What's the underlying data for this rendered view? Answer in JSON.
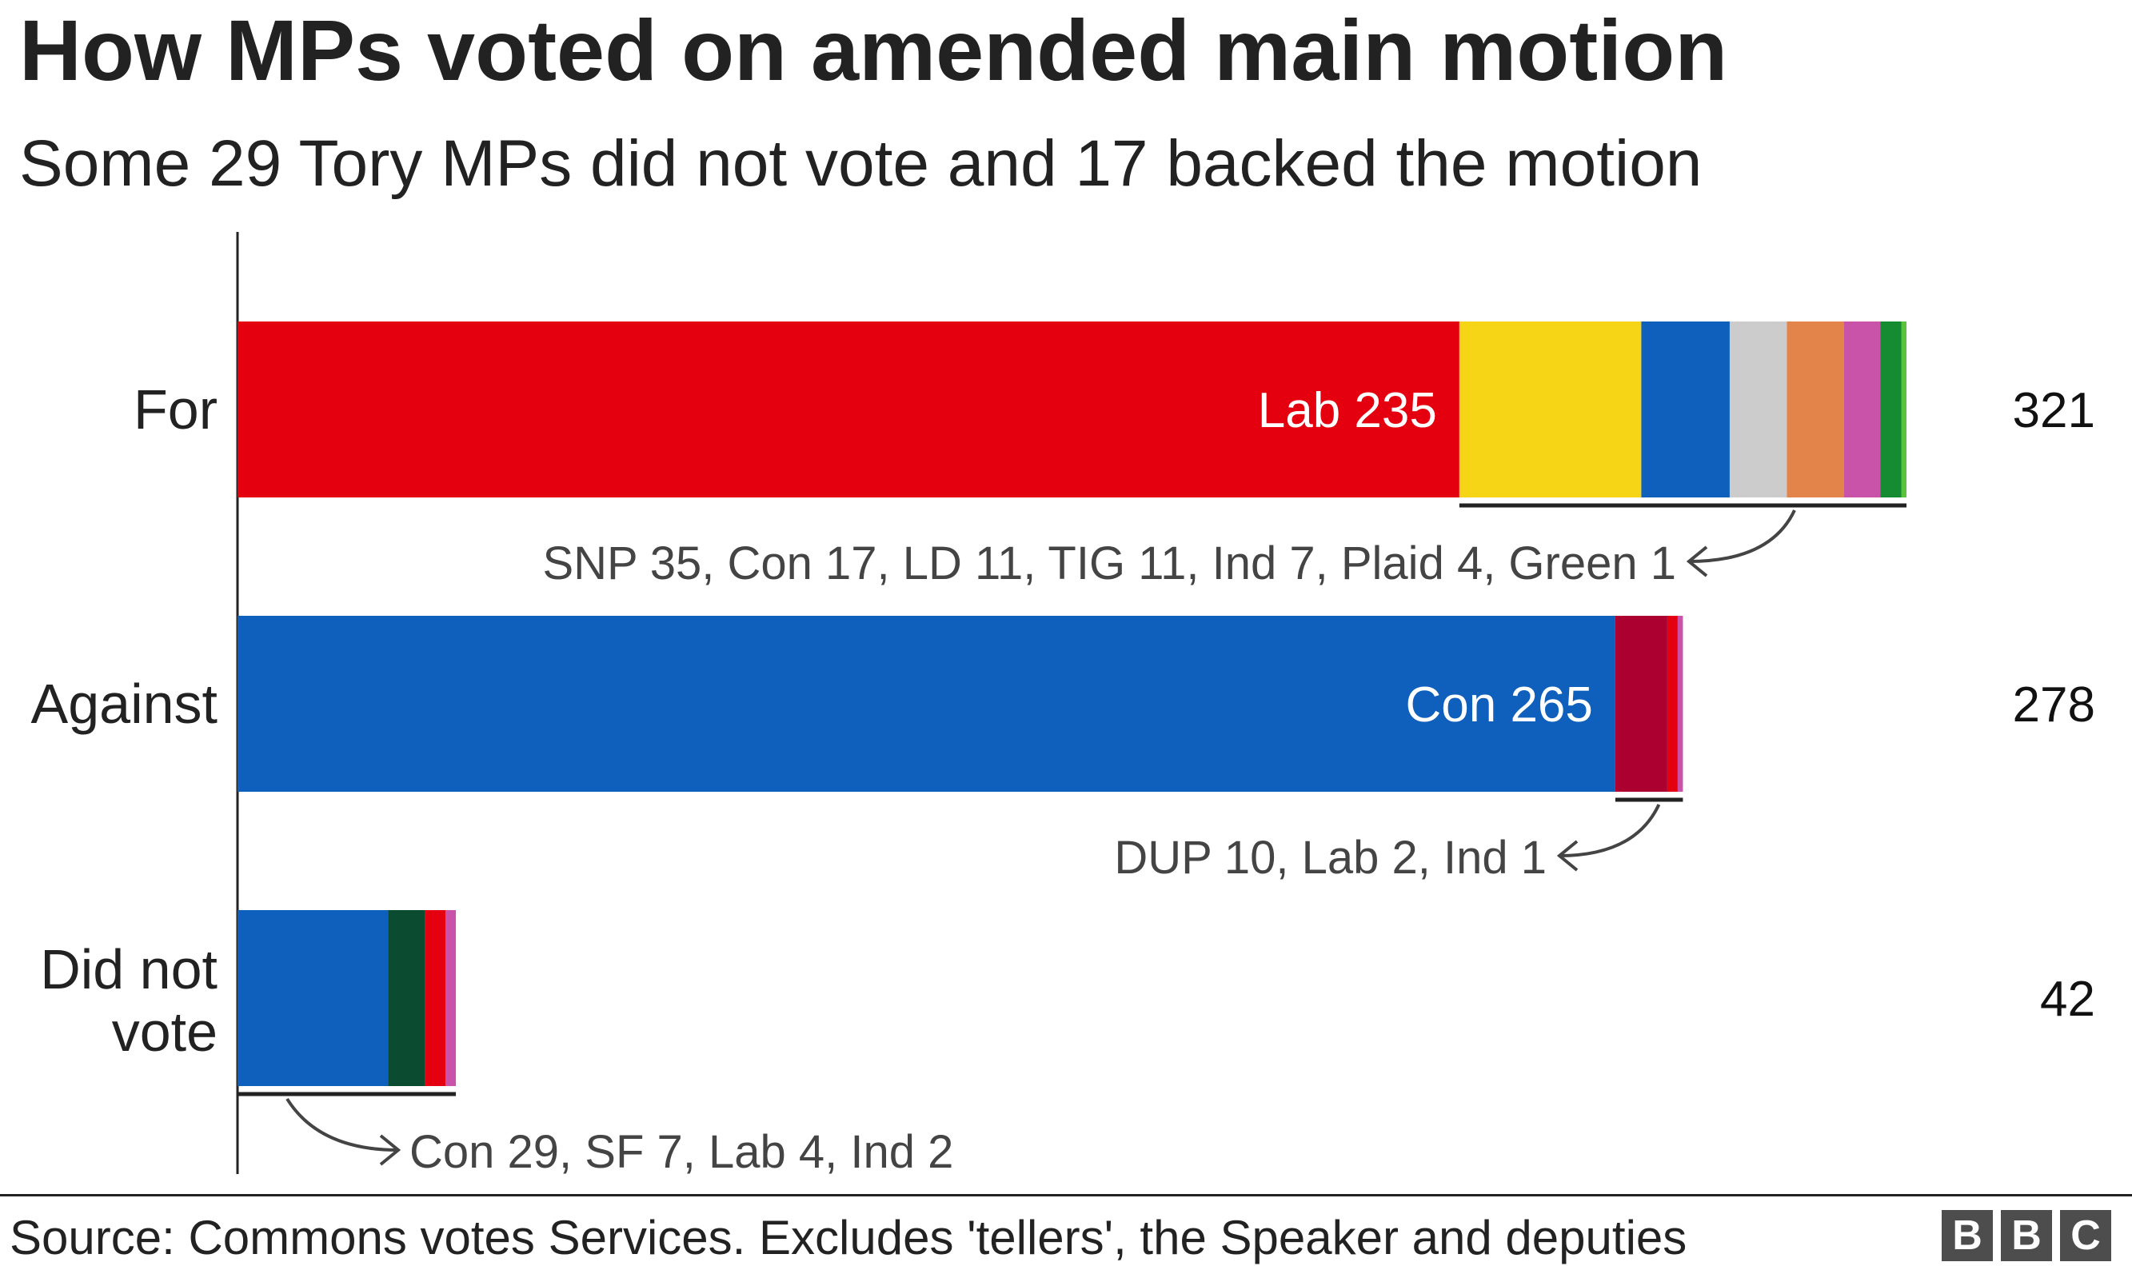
{
  "title": "How MPs voted on amended main motion",
  "subtitle": "Some 29 Tory MPs did not vote and 17 backed the motion",
  "source": "Source: Commons votes Services. Excludes 'tellers', the Speaker and deputies",
  "logo": [
    "B",
    "B",
    "C"
  ],
  "chart_data": {
    "type": "bar",
    "orientation": "horizontal",
    "stacked": true,
    "categories": [
      "For",
      "Against",
      "Did not vote"
    ],
    "totals": [
      321,
      278,
      42
    ],
    "colors": {
      "Lab": "#e4000f",
      "SNP": "#f6d416",
      "Con": "#0f5fbd",
      "LD": "#cccccc",
      "TIG": "#e3844a",
      "Ind": "#c953a8",
      "Plaid": "#168c32",
      "Green": "#5ac23c",
      "DUP": "#ac0031",
      "SF": "#0b4c31"
    },
    "bars": [
      {
        "label": "For",
        "segments": [
          {
            "party": "Lab",
            "value": 235
          },
          {
            "party": "SNP",
            "value": 35
          },
          {
            "party": "Con",
            "value": 17
          },
          {
            "party": "LD",
            "value": 11
          },
          {
            "party": "TIG",
            "value": 11
          },
          {
            "party": "Ind",
            "value": 7
          },
          {
            "party": "Plaid",
            "value": 4
          },
          {
            "party": "Green",
            "value": 1
          }
        ],
        "main_label": "Lab 235",
        "annotation": "SNP 35, Con 17, LD 11, TIG 11, Ind 7, Plaid 4, Green 1"
      },
      {
        "label": "Against",
        "segments": [
          {
            "party": "Con",
            "value": 265
          },
          {
            "party": "DUP",
            "value": 10
          },
          {
            "party": "Lab",
            "value": 2
          },
          {
            "party": "Ind",
            "value": 1
          }
        ],
        "main_label": "Con 265",
        "annotation": "DUP 10, Lab 2, Ind 1"
      },
      {
        "label": "Did not vote",
        "segments": [
          {
            "party": "Con",
            "value": 29
          },
          {
            "party": "SF",
            "value": 7
          },
          {
            "party": "Lab",
            "value": 4
          },
          {
            "party": "Ind",
            "value": 2
          }
        ],
        "main_label": "",
        "annotation": "Con 29, SF 7, Lab 4, Ind 2"
      }
    ],
    "xlim": [
      0,
      321
    ],
    "grid": false,
    "legend": "none"
  }
}
